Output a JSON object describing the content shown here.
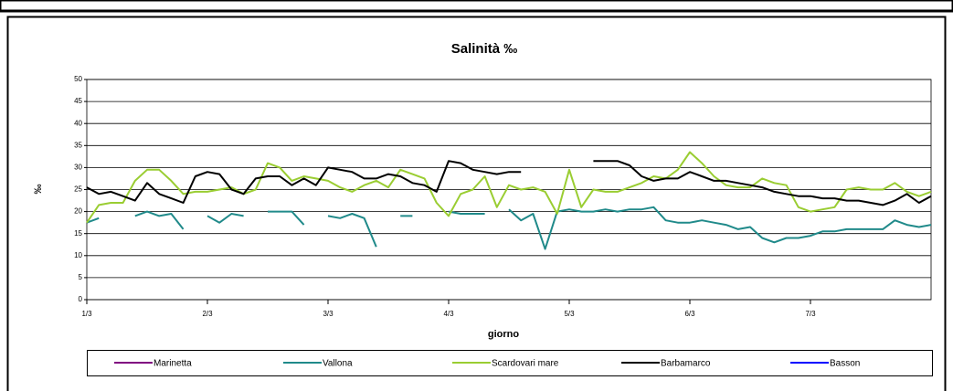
{
  "chart_data": {
    "type": "line",
    "title": "Salinità ‰",
    "x_label": "giorno",
    "y_label": "‰",
    "x": [
      0,
      0.1,
      0.2,
      0.3,
      0.4,
      0.5,
      0.6,
      0.7,
      0.8,
      0.9,
      1,
      1.1,
      1.2,
      1.3,
      1.4,
      1.5,
      1.6,
      1.7,
      1.8,
      1.9,
      2,
      2.1,
      2.2,
      2.3,
      2.4,
      2.5,
      2.6,
      2.7,
      2.8,
      2.9,
      3,
      3.1,
      3.2,
      3.3,
      3.4,
      3.5,
      3.6,
      3.7,
      3.8,
      3.9,
      4,
      4.1,
      4.2,
      4.3,
      4.4,
      4.5,
      4.6,
      4.7,
      4.8,
      4.9,
      5,
      5.1,
      5.2,
      5.3,
      5.4,
      5.5,
      5.6,
      5.7,
      5.8,
      5.9,
      6,
      6.1,
      6.2,
      6.3,
      6.4,
      6.5,
      6.6,
      6.7,
      6.8,
      6.9,
      7
    ],
    "series": [
      {
        "name": "Marinetta",
        "color": "#800080",
        "values": [
          null,
          null,
          null,
          null,
          null,
          null,
          null,
          null,
          null,
          null,
          null,
          null,
          null,
          null,
          null,
          null,
          null,
          null,
          null,
          null,
          null,
          null,
          null,
          null,
          null,
          null,
          null,
          null,
          null,
          null,
          null,
          null,
          null,
          null,
          null,
          null,
          null,
          null,
          null,
          null,
          null,
          null,
          null,
          null,
          null,
          null,
          null,
          null,
          null,
          null,
          null,
          null,
          null,
          null,
          null,
          null,
          null,
          null,
          null,
          null,
          null,
          null,
          null,
          null,
          null,
          null,
          null,
          null,
          null,
          null,
          null
        ]
      },
      {
        "name": "Vallona",
        "color": "#208a8a",
        "values": [
          17.5,
          18.5,
          null,
          null,
          19,
          20,
          19,
          19.5,
          16,
          null,
          19,
          17.5,
          19.5,
          19,
          null,
          20,
          20,
          20,
          17,
          null,
          19,
          18.5,
          19.5,
          18.5,
          12,
          null,
          19,
          19,
          null,
          null,
          20,
          19.5,
          19.5,
          19.5,
          null,
          20.5,
          18,
          19.5,
          11.5,
          20,
          20.5,
          20,
          20,
          20.5,
          20,
          20.5,
          20.5,
          21,
          18,
          17.5,
          17.5,
          18,
          17.5,
          17,
          16,
          16.5,
          14,
          13,
          14,
          14,
          14.5,
          15.5,
          15.5,
          16,
          16,
          16,
          16,
          18,
          17,
          16.5,
          17
        ]
      },
      {
        "name": "Scardovari mare",
        "color": "#9acd32",
        "values": [
          17.5,
          21.5,
          22,
          22,
          27,
          29.5,
          29.5,
          27,
          24,
          24.5,
          24.5,
          25,
          25.5,
          24,
          25,
          31,
          30,
          27,
          28,
          27.5,
          27,
          25.5,
          24.5,
          26,
          27,
          25.5,
          29.5,
          28.5,
          27.5,
          22,
          19,
          24,
          25,
          28,
          21,
          26,
          25,
          25.5,
          24.5,
          19.5,
          29.5,
          21,
          25,
          24.5,
          24.5,
          25.5,
          26.5,
          28,
          27.5,
          29.5,
          33.5,
          31,
          28,
          26,
          25.5,
          25.5,
          27.5,
          26.5,
          26,
          21,
          20,
          20.5,
          21,
          25,
          25.5,
          25,
          25,
          26.5,
          24.5,
          23.5,
          24.5
        ]
      },
      {
        "name": "Barbamarco",
        "color": "#000000",
        "values": [
          25.5,
          24,
          24.5,
          23.5,
          22.5,
          26.5,
          24,
          23,
          22,
          28,
          29,
          28.5,
          25,
          24,
          27.5,
          28,
          28,
          26,
          27.5,
          26,
          30,
          29.5,
          29,
          27.5,
          27.5,
          28.5,
          28,
          26.5,
          26,
          24.5,
          31.5,
          31,
          29.5,
          29,
          28.5,
          29,
          29,
          null,
          26,
          null,
          null,
          null,
          31.5,
          31.5,
          31.5,
          30.5,
          28,
          27,
          27.5,
          27.5,
          29,
          28,
          27,
          27,
          26.5,
          26,
          25.5,
          24.5,
          24,
          23.5,
          23.5,
          23,
          23,
          22.5,
          22.5,
          22,
          21.5,
          22.5,
          24,
          22,
          23.5
        ]
      },
      {
        "name": "Basson",
        "color": "#0000ff",
        "values": [
          null,
          null,
          null,
          null,
          null,
          null,
          null,
          null,
          null,
          null,
          null,
          null,
          null,
          null,
          null,
          null,
          null,
          null,
          null,
          null,
          null,
          null,
          null,
          null,
          null,
          null,
          null,
          null,
          null,
          null,
          null,
          null,
          null,
          null,
          null,
          null,
          null,
          null,
          null,
          null,
          null,
          null,
          null,
          null,
          null,
          null,
          null,
          null,
          null,
          null,
          null,
          null,
          null,
          null,
          null,
          null,
          null,
          null,
          null,
          null,
          null,
          null,
          null,
          null,
          null,
          null,
          null,
          null,
          null,
          null,
          null
        ]
      }
    ],
    "xlim": [
      0,
      7
    ],
    "xticks": [
      {
        "value": 0,
        "label": "1/3"
      },
      {
        "value": 1,
        "label": "2/3"
      },
      {
        "value": 2,
        "label": "3/3"
      },
      {
        "value": 3,
        "label": "4/3"
      },
      {
        "value": 4,
        "label": "5/3"
      },
      {
        "value": 5,
        "label": "6/3"
      },
      {
        "value": 6,
        "label": "7/3"
      }
    ],
    "ylim": [
      0,
      50
    ],
    "yticks": [
      0,
      5,
      10,
      15,
      20,
      25,
      30,
      35,
      40,
      45,
      50
    ],
    "grid": true,
    "legend": "bottom"
  }
}
